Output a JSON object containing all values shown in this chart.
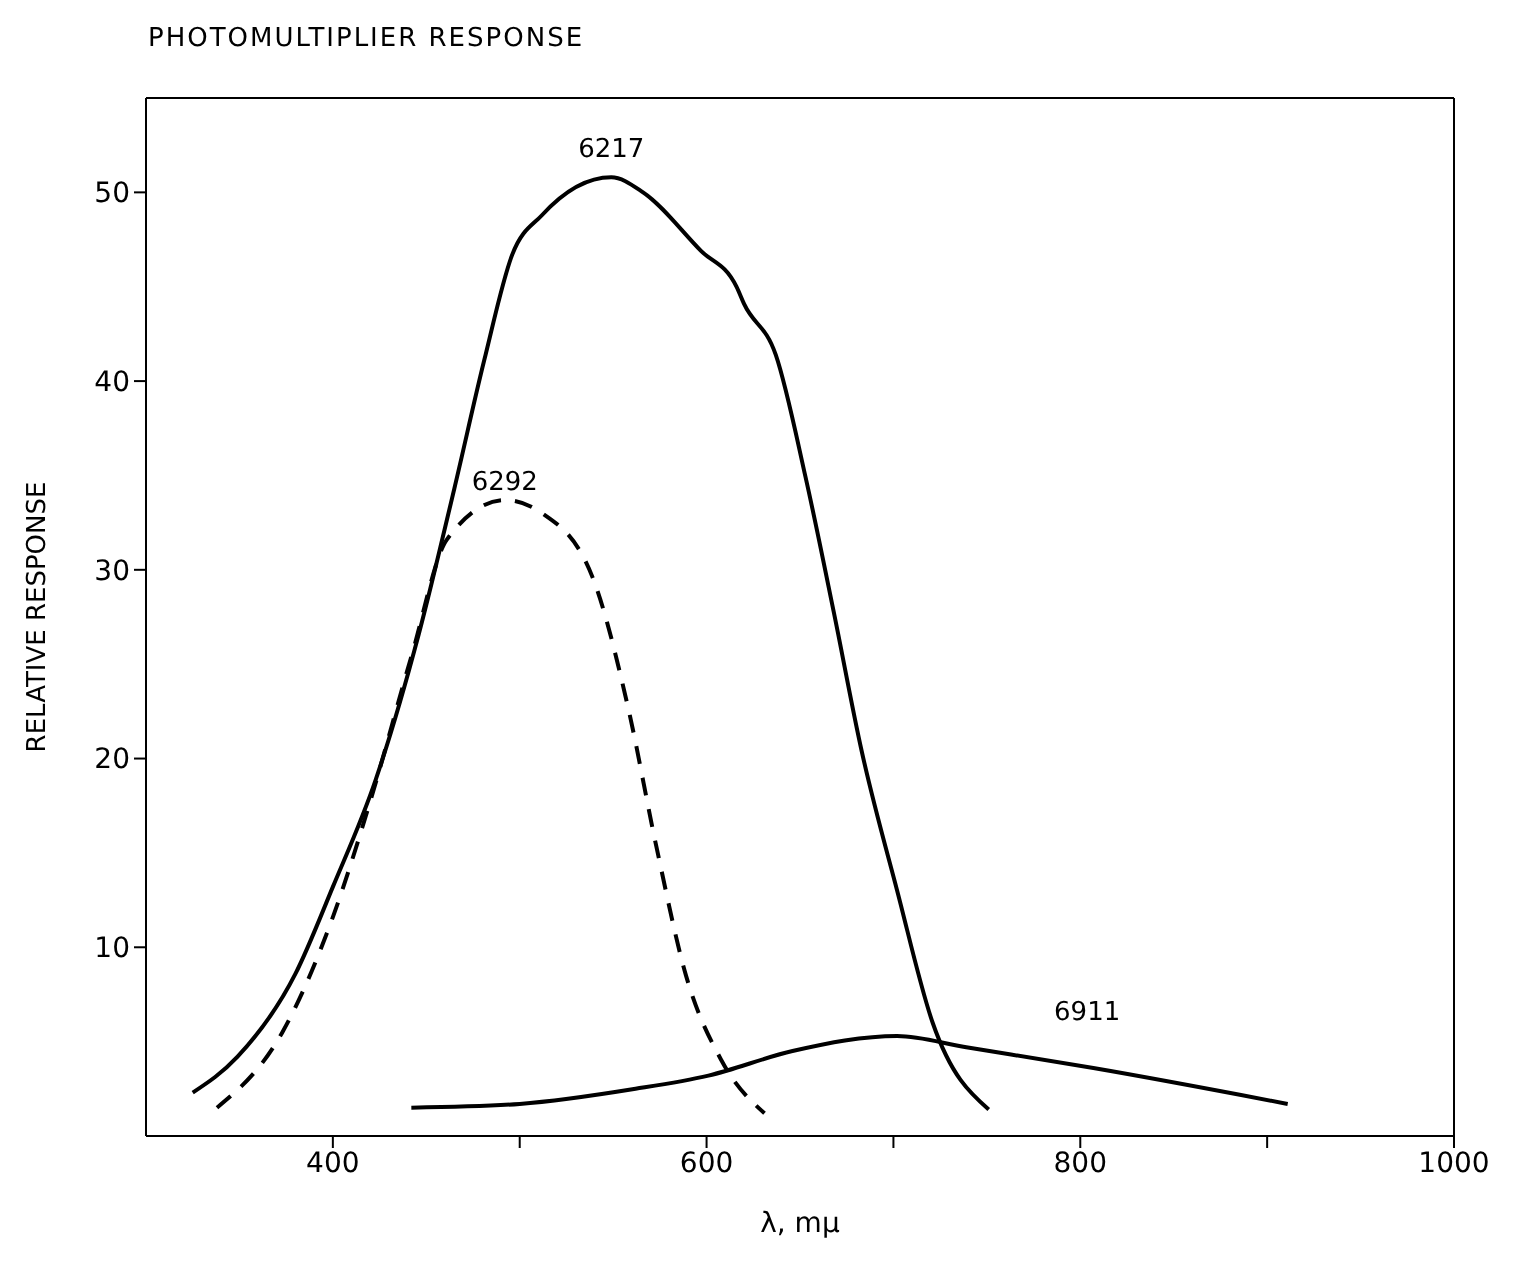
{
  "chart_data": {
    "type": "line",
    "title": "PHOTOMULTIPLIER RESPONSE",
    "xlabel": "λ, mμ",
    "ylabel": "RELATIVE RESPONSE",
    "xlim": [
      300,
      1000
    ],
    "xticks": [
      400,
      {
        "value": 500,
        "label": null
      },
      600,
      {
        "value": 700,
        "label": null
      },
      800,
      {
        "value": 900,
        "label": null
      },
      1000
    ],
    "ylim": [
      0,
      55
    ],
    "yticks": [
      10,
      20,
      30,
      40,
      50
    ],
    "marker": "none",
    "series": [
      {
        "name": "6217",
        "color": "#000000",
        "line_style": "solid",
        "x": [
          325,
          349,
          380,
          400,
          423,
          446,
          465,
          481,
          496,
          512,
          549,
          566,
          597,
          616,
          620,
          637,
          653,
          668,
          683,
          702,
          721,
          751
        ],
        "values": [
          2.3,
          4.2,
          8.6,
          13.2,
          18.9,
          26.6,
          34.3,
          41.1,
          46.7,
          48.8,
          50.8,
          50,
          46.9,
          45,
          44.1,
          41.4,
          34.9,
          27.8,
          20.4,
          13,
          6,
          1.4
        ]
      },
      {
        "name": "6292",
        "color": "#000000",
        "line_style": "dashed",
        "x": [
          338,
          373,
          400,
          419,
          442,
          461,
          492,
          512,
          539,
          558,
          573,
          589,
          608,
          631
        ],
        "values": [
          1.5,
          5.5,
          11.6,
          17.4,
          25.4,
          31.6,
          33.7,
          33,
          29.6,
          22.7,
          15.4,
          8.5,
          4,
          1.2
        ]
      },
      {
        "name": "6911",
        "color": "#000000",
        "line_style": "solid",
        "x": [
          442,
          500,
          562,
          601,
          646,
          702,
          739,
          807,
          911
        ],
        "values": [
          1.5,
          1.7,
          2.5,
          3.2,
          4.5,
          5.3,
          4.7,
          3.6,
          1.7
        ]
      }
    ]
  }
}
